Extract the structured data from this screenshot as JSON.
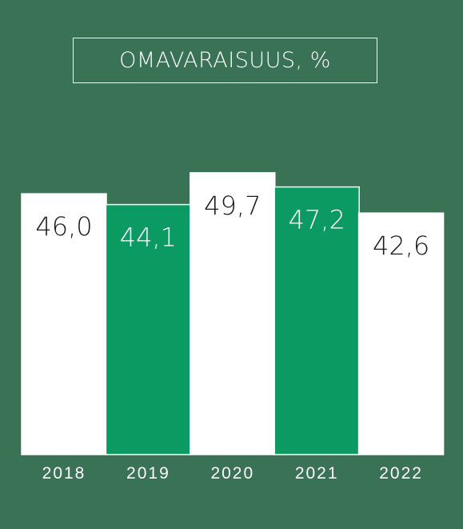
{
  "chart_data": {
    "type": "bar",
    "title": "OMAVARAISUUS, %",
    "categories": [
      "2018",
      "2019",
      "2020",
      "2021",
      "2022"
    ],
    "values": [
      46.0,
      44.1,
      49.7,
      47.2,
      42.6
    ],
    "value_labels": [
      "46,0",
      "44,1",
      "49,7",
      "47,2",
      "42,6"
    ],
    "bar_colors": [
      "#ffffff",
      "#0b9a62",
      "#ffffff",
      "#0b9a62",
      "#ffffff"
    ],
    "label_colors": [
      "#1a1a1a",
      "#ffffff",
      "#1a1a1a",
      "#ffffff",
      "#1a1a1a"
    ],
    "xlabel": "",
    "ylabel": "",
    "grid": false,
    "legend": "none"
  },
  "colors": {
    "background": "#3a7255",
    "white": "#ffffff",
    "green_bar": "#0b9a62"
  }
}
